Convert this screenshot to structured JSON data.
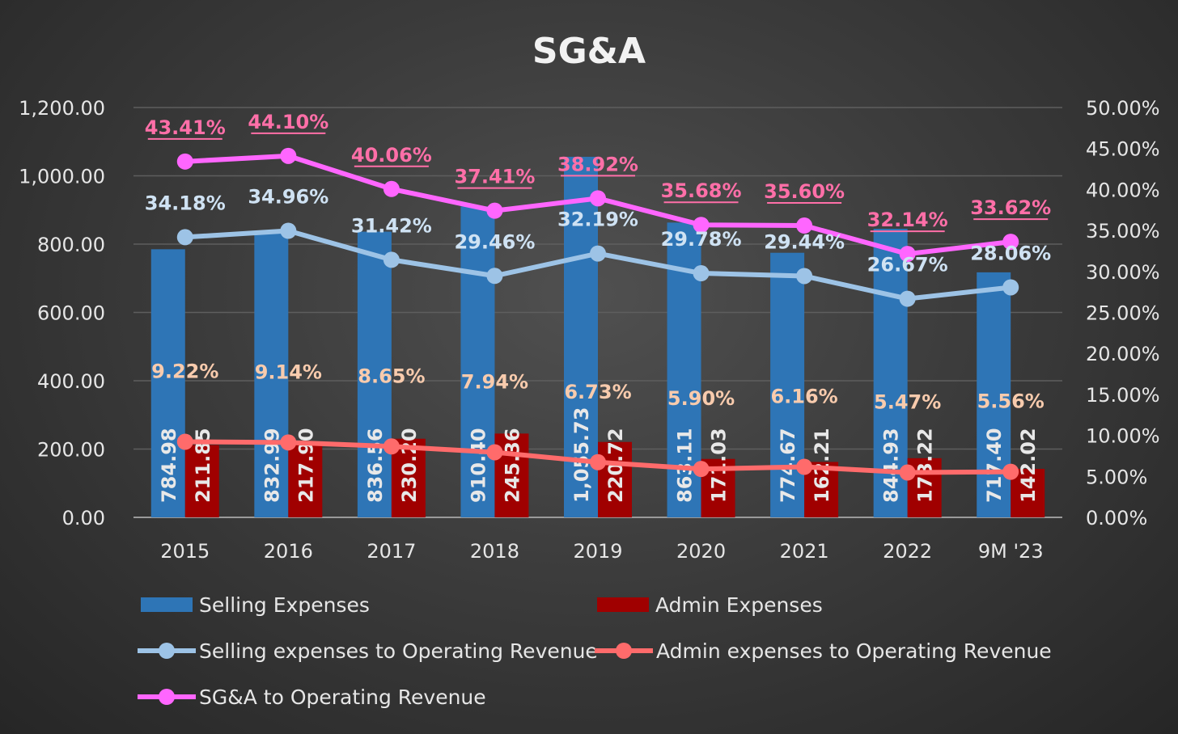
{
  "chart_data": {
    "type": "bar+line",
    "title": "SG&A",
    "categories": [
      "2015",
      "2016",
      "2017",
      "2018",
      "2019",
      "2020",
      "2021",
      "2022",
      "9M '23"
    ],
    "left_axis": {
      "range": [
        0,
        1200
      ],
      "ticks": [
        "0.00",
        "200.00",
        "400.00",
        "600.00",
        "800.00",
        "1,000.00",
        "1,200.00"
      ]
    },
    "right_axis": {
      "range": [
        0,
        50
      ],
      "ticks": [
        "0.00%",
        "5.00%",
        "10.00%",
        "15.00%",
        "20.00%",
        "25.00%",
        "30.00%",
        "35.00%",
        "40.00%",
        "45.00%",
        "50.00%"
      ]
    },
    "grid": true,
    "legend_position": "bottom",
    "bar_series": [
      {
        "name": "Selling Expenses",
        "color": "#2e75b6",
        "values": [
          784.98,
          832.99,
          836.56,
          910.4,
          1055.73,
          863.11,
          774.67,
          844.93,
          717.4
        ],
        "labels": [
          "784.98",
          "832.99",
          "836.56",
          "910.40",
          "1,055.73",
          "863.11",
          "774.67",
          "844.93",
          "717.40"
        ]
      },
      {
        "name": "Admin Expenses",
        "color": "#a00000",
        "values": [
          211.85,
          217.9,
          230.2,
          245.36,
          220.72,
          171.03,
          162.21,
          173.22,
          142.02
        ],
        "labels": [
          "211.85",
          "217.90",
          "230.20",
          "245.36",
          "220.72",
          "171.03",
          "162.21",
          "173.22",
          "142.02"
        ]
      }
    ],
    "line_series": [
      {
        "name": "Selling expenses to Operating Revenue",
        "color": "#9dc3e6",
        "label_color": "#cfe2f3",
        "values": [
          34.18,
          34.96,
          31.42,
          29.46,
          32.19,
          29.78,
          29.44,
          26.67,
          28.06
        ],
        "labels": [
          "34.18%",
          "34.96%",
          "31.42%",
          "29.46%",
          "32.19%",
          "29.78%",
          "29.44%",
          "26.67%",
          "28.06%"
        ]
      },
      {
        "name": "Admin expenses to Operating Revenue",
        "color": "#ff6b6b",
        "label_color": "#f8cbad",
        "values": [
          9.22,
          9.14,
          8.65,
          7.94,
          6.73,
          5.9,
          6.16,
          5.47,
          5.56
        ],
        "labels": [
          "9.22%",
          "9.14%",
          "8.65%",
          "7.94%",
          "6.73%",
          "5.90%",
          "6.16%",
          "5.47%",
          "5.56%"
        ]
      },
      {
        "name": "SG&A to Operating Revenue",
        "color": "#ff66ff",
        "label_color": "#ff6fa8",
        "values": [
          43.41,
          44.1,
          40.06,
          37.41,
          38.92,
          35.68,
          35.6,
          32.14,
          33.62
        ],
        "labels": [
          "43.41%",
          "44.10%",
          "40.06%",
          "37.41%",
          "38.92%",
          "35.68%",
          "35.60%",
          "32.14%",
          "33.62%"
        ]
      }
    ]
  }
}
